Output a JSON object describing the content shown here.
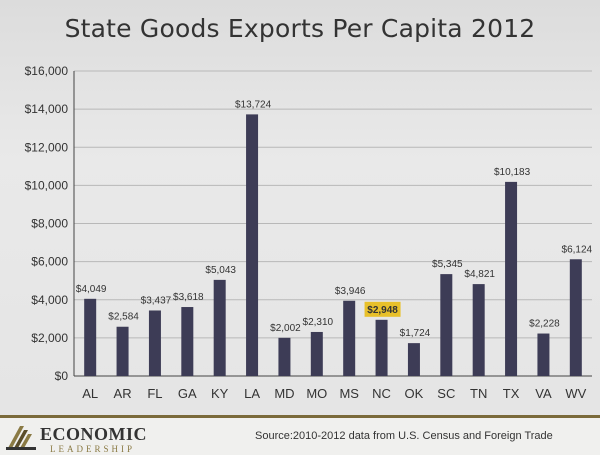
{
  "title": "State Goods Exports Per Capita 2012",
  "footer": {
    "logo_text": "ECONOMIC",
    "logo_subtext": "LEADERSHIP",
    "source": "Source:2010-2012 data from U.S. Census  and Foreign Trade"
  },
  "colors": {
    "bar": "#3d3c56",
    "highlight_label_bg": "#e8c02a",
    "accent": "#7a6a3a"
  },
  "chart_data": {
    "type": "bar",
    "title": "State Goods Exports Per Capita 2012",
    "xlabel": "",
    "ylabel": "",
    "categories": [
      "AL",
      "AR",
      "FL",
      "GA",
      "KY",
      "LA",
      "MD",
      "MO",
      "MS",
      "NC",
      "OK",
      "SC",
      "TN",
      "TX",
      "VA",
      "WV"
    ],
    "values": [
      4049,
      2584,
      3437,
      3618,
      5043,
      13724,
      2002,
      2310,
      3946,
      2948,
      1724,
      5345,
      4821,
      10183,
      2228,
      6124
    ],
    "value_labels": [
      "$4,049",
      "$2,584",
      "$3,437",
      "$3,618",
      "$5,043",
      "$13,724",
      "$2,002",
      "$2,310",
      "$3,946",
      "$2,948",
      "$1,724",
      "$5,345",
      "$4,821",
      "$10,183",
      "$2,228",
      "$6,124"
    ],
    "highlighted_category": "NC",
    "ylim": [
      0,
      16000
    ],
    "yticks": [
      0,
      2000,
      4000,
      6000,
      8000,
      10000,
      12000,
      14000,
      16000
    ],
    "ytick_labels": [
      "$0",
      "$2,000",
      "$4,000",
      "$6,000",
      "$8,000",
      "$10,000",
      "$12,000",
      "$14,000",
      "$16,000"
    ],
    "grid": true,
    "legend": "none"
  }
}
